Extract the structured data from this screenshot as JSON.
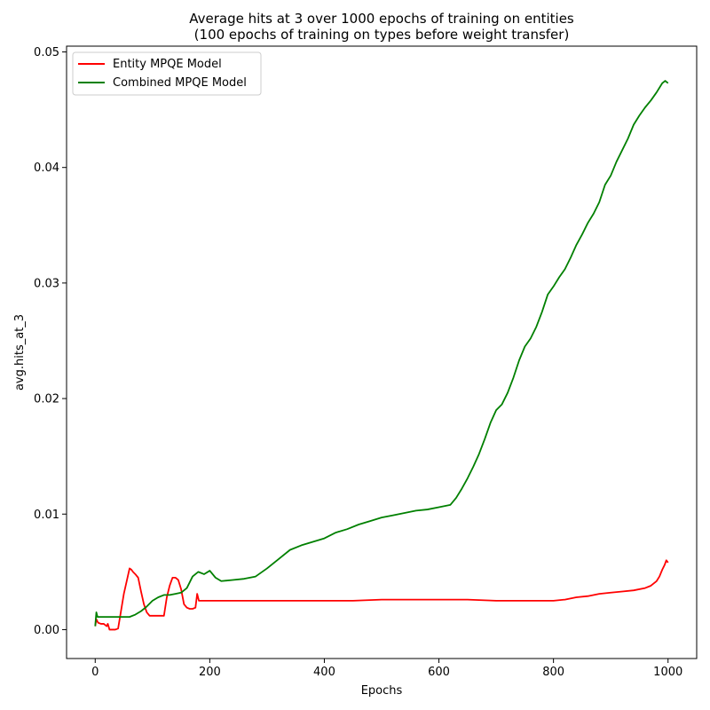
{
  "chart_data": {
    "type": "line",
    "title_line1": "Average hits at 3 over 1000 epochs of training on entities",
    "title_line2": "(100 epochs of training on types before weight transfer)",
    "xlabel": "Epochs",
    "ylabel": "avg.hits_at_3",
    "xlim": [
      -50,
      1050
    ],
    "ylim": [
      -0.0025,
      0.0505
    ],
    "x_ticks": [
      0,
      200,
      400,
      600,
      800,
      1000
    ],
    "x_tick_labels": [
      "0",
      "200",
      "400",
      "600",
      "800",
      "1000"
    ],
    "y_ticks": [
      0.0,
      0.01,
      0.02,
      0.03,
      0.04,
      0.05
    ],
    "y_tick_labels": [
      "0.00",
      "0.01",
      "0.02",
      "0.03",
      "0.04",
      "0.05"
    ],
    "grid": false,
    "legend_position": "top-left",
    "series": [
      {
        "name": "Entity MPQE Model",
        "color": "#ff0000",
        "x": [
          0,
          2,
          5,
          10,
          15,
          20,
          22,
          25,
          30,
          35,
          40,
          45,
          50,
          55,
          60,
          63,
          66,
          70,
          75,
          80,
          85,
          90,
          95,
          100,
          105,
          110,
          115,
          120,
          125,
          130,
          135,
          140,
          145,
          150,
          155,
          160,
          165,
          170,
          175,
          178,
          181,
          185,
          200,
          250,
          300,
          350,
          400,
          450,
          500,
          550,
          600,
          650,
          700,
          750,
          780,
          800,
          820,
          840,
          860,
          880,
          900,
          920,
          940,
          960,
          970,
          980,
          985,
          990,
          994,
          997,
          1000
        ],
        "y": [
          0.0003,
          0.0009,
          0.0006,
          0.0005,
          0.0005,
          0.0003,
          0.0005,
          0.0,
          0.0,
          0.0,
          0.0001,
          0.0016,
          0.0031,
          0.0042,
          0.0053,
          0.0052,
          0.005,
          0.0048,
          0.0045,
          0.0033,
          0.0022,
          0.0015,
          0.0012,
          0.0012,
          0.0012,
          0.0012,
          0.0012,
          0.0012,
          0.0028,
          0.0038,
          0.0045,
          0.0045,
          0.0043,
          0.0035,
          0.0022,
          0.0019,
          0.0018,
          0.0018,
          0.0019,
          0.0031,
          0.0025,
          0.0025,
          0.0025,
          0.0025,
          0.0025,
          0.0025,
          0.0025,
          0.0025,
          0.0026,
          0.0026,
          0.0026,
          0.0026,
          0.0025,
          0.0025,
          0.0025,
          0.0025,
          0.0026,
          0.0028,
          0.0029,
          0.0031,
          0.0032,
          0.0033,
          0.0034,
          0.0036,
          0.0038,
          0.0042,
          0.0046,
          0.0052,
          0.0056,
          0.006,
          0.0058
        ]
      },
      {
        "name": "Combined MPQE Model",
        "color": "#008000",
        "x": [
          0,
          2,
          4,
          6,
          10,
          20,
          40,
          60,
          70,
          80,
          90,
          100,
          110,
          120,
          130,
          140,
          150,
          160,
          170,
          180,
          190,
          200,
          210,
          220,
          240,
          260,
          280,
          300,
          320,
          340,
          360,
          380,
          400,
          420,
          440,
          460,
          480,
          500,
          520,
          540,
          560,
          580,
          600,
          620,
          630,
          640,
          650,
          660,
          670,
          680,
          690,
          700,
          710,
          720,
          730,
          740,
          750,
          760,
          770,
          780,
          790,
          800,
          810,
          820,
          830,
          840,
          850,
          860,
          870,
          880,
          890,
          900,
          910,
          920,
          930,
          940,
          950,
          960,
          970,
          980,
          990,
          995,
          1000
        ],
        "y": [
          0.0003,
          0.0015,
          0.0011,
          0.0011,
          0.0011,
          0.0011,
          0.0011,
          0.0011,
          0.0013,
          0.0016,
          0.002,
          0.0025,
          0.0028,
          0.003,
          0.003,
          0.0031,
          0.0032,
          0.0036,
          0.0046,
          0.005,
          0.0048,
          0.0051,
          0.0045,
          0.0042,
          0.0043,
          0.0044,
          0.0046,
          0.0053,
          0.0061,
          0.0069,
          0.0073,
          0.0076,
          0.0079,
          0.0084,
          0.0087,
          0.0091,
          0.0094,
          0.0097,
          0.0099,
          0.0101,
          0.0103,
          0.0104,
          0.0106,
          0.0108,
          0.0114,
          0.0122,
          0.0131,
          0.0141,
          0.0152,
          0.0165,
          0.0179,
          0.019,
          0.0195,
          0.0205,
          0.0218,
          0.0233,
          0.0245,
          0.0252,
          0.0262,
          0.0275,
          0.029,
          0.0297,
          0.0305,
          0.0312,
          0.0322,
          0.0333,
          0.0342,
          0.0352,
          0.036,
          0.037,
          0.0385,
          0.0393,
          0.0405,
          0.0415,
          0.0425,
          0.0437,
          0.0445,
          0.0452,
          0.0458,
          0.0465,
          0.0473,
          0.0475,
          0.0473
        ]
      }
    ]
  }
}
